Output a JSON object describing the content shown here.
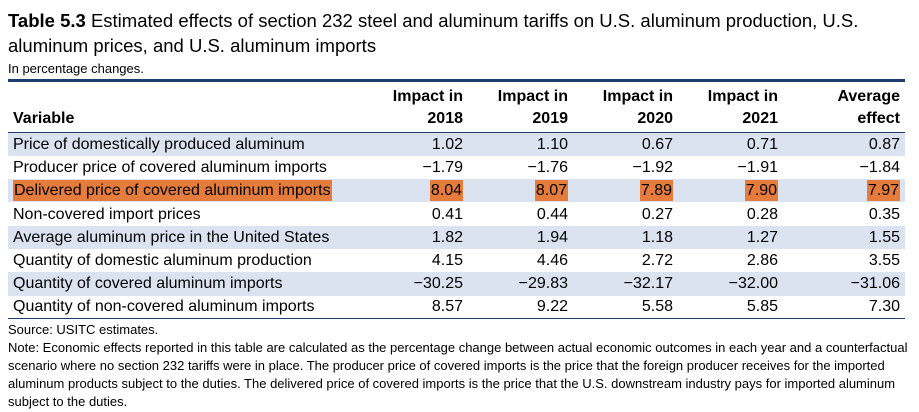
{
  "title": {
    "label": "Table 5.3",
    "text": "Estimated effects of section 232 steel and aluminum tariffs on U.S. aluminum production, U.S. aluminum prices, and U.S. aluminum imports"
  },
  "subtitle": "In percentage changes.",
  "colors": {
    "rule": "#1f3c6e",
    "shade": "#dbe3f1",
    "highlight": "#e67c3b"
  },
  "table": {
    "headers": {
      "variable": "Variable",
      "c1": {
        "line1": "Impact in",
        "line2": "2018"
      },
      "c2": {
        "line1": "Impact in",
        "line2": "2019"
      },
      "c3": {
        "line1": "Impact in",
        "line2": "2020"
      },
      "c4": {
        "line1": "Impact in",
        "line2": "2021"
      },
      "c5": {
        "line1": "Average",
        "line2": "effect"
      }
    },
    "rows": [
      {
        "label": "Price of domestically produced aluminum",
        "values": [
          "1.02",
          "1.10",
          "0.67",
          "0.71",
          "0.87"
        ]
      },
      {
        "label": "Producer price of covered aluminum imports",
        "values": [
          "−1.79",
          "−1.76",
          "−1.92",
          "−1.91",
          "−1.84"
        ]
      },
      {
        "label": "Delivered price of covered aluminum imports",
        "values": [
          "8.04",
          "8.07",
          "7.89",
          "7.90",
          "7.97"
        ]
      },
      {
        "label": "Non-covered import prices",
        "values": [
          "0.41",
          "0.44",
          "0.27",
          "0.28",
          "0.35"
        ]
      },
      {
        "label": "Average aluminum price in the United States",
        "values": [
          "1.82",
          "1.94",
          "1.18",
          "1.27",
          "1.55"
        ]
      },
      {
        "label": "Quantity of domestic aluminum production",
        "values": [
          "4.15",
          "4.46",
          "2.72",
          "2.86",
          "3.55"
        ]
      },
      {
        "label": "Quantity of covered aluminum imports",
        "values": [
          "−30.25",
          "−29.83",
          "−32.17",
          "−32.00",
          "−31.06"
        ]
      },
      {
        "label": "Quantity of non-covered aluminum imports",
        "values": [
          "8.57",
          "9.22",
          "5.58",
          "5.85",
          "7.30"
        ]
      }
    ]
  },
  "source": "Source: USITC estimates.",
  "note": "Note: Economic effects reported in this table are calculated as the percentage change between actual economic outcomes in each year and a counterfactual scenario where no section 232 tariffs were in place. The producer price of covered imports is the price that the foreign producer receives for the imported aluminum products subject to the duties. The delivered price of covered imports is the price that the U.S. downstream industry pays for imported aluminum subject to the duties."
}
